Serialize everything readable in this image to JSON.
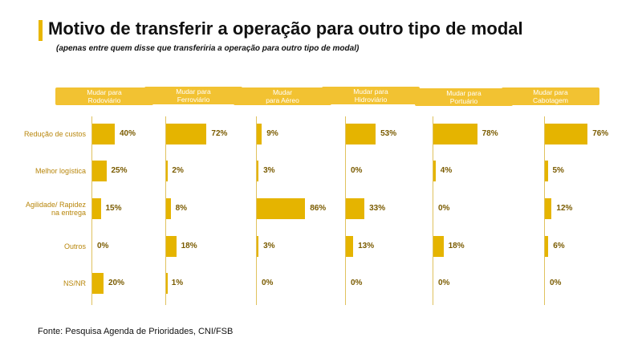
{
  "title": "Motivo de transferir a operação para outro tipo de modal",
  "subtitle": "(apenas entre quem disse que transferiria a operação para outro tipo de modal)",
  "source": "Fonte: Pesquisa Agenda de Prioridades, CNI/FSB",
  "colors": {
    "accent": "#e8b600",
    "header": "#f2c232",
    "bar": "#e5b400",
    "label": "#b8860b"
  },
  "chart_data": {
    "type": "bar",
    "title": "Motivo de transferir a operação para outro tipo de modal",
    "categories": [
      "Redução de custos",
      "Melhor logística",
      "Agilidade/ Rapidez\nna entrega",
      "Outros",
      "NS/NR"
    ],
    "series": [
      {
        "name": "Mudar para\nRodoviário",
        "values": [
          40,
          25,
          15,
          0,
          20
        ]
      },
      {
        "name": "Mudar para\nFerroviário",
        "values": [
          72,
          2,
          8,
          18,
          1
        ]
      },
      {
        "name": "Mudar\npara Aéreo",
        "values": [
          9,
          3,
          86,
          3,
          0
        ]
      },
      {
        "name": "Mudar para\nHidroviário",
        "values": [
          53,
          0,
          33,
          13,
          0
        ]
      },
      {
        "name": "Mudar para\nPortuário",
        "values": [
          78,
          4,
          0,
          18,
          0
        ]
      },
      {
        "name": "Mudar para\nCabotagem",
        "values": [
          76,
          5,
          12,
          6,
          0
        ]
      }
    ],
    "unit": "%",
    "xlim": [
      0,
      100
    ]
  }
}
